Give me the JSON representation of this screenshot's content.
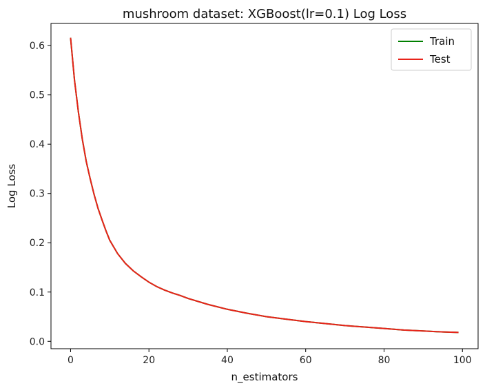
{
  "chart_data": {
    "type": "line",
    "title": "mushroom dataset: XGBoost(lr=0.1) Log Loss",
    "xlabel": "n_estimators",
    "ylabel": "Log Loss",
    "xlim": [
      -5,
      104
    ],
    "ylim": [
      -0.015,
      0.645
    ],
    "xticks": [
      0,
      20,
      40,
      60,
      80,
      100
    ],
    "yticks": [
      0.0,
      0.1,
      0.2,
      0.3,
      0.4,
      0.5,
      0.6
    ],
    "xtick_labels": [
      "0",
      "20",
      "40",
      "60",
      "80",
      "100"
    ],
    "ytick_labels": [
      "0.0",
      "0.1",
      "0.2",
      "0.3",
      "0.4",
      "0.5",
      "0.6"
    ],
    "grid": false,
    "legend_position": "top-right",
    "x": [
      0,
      1,
      2,
      3,
      4,
      5,
      6,
      7,
      8,
      9,
      10,
      12,
      14,
      16,
      18,
      20,
      22,
      24,
      26,
      28,
      30,
      35,
      40,
      45,
      50,
      55,
      60,
      65,
      70,
      75,
      80,
      85,
      90,
      95,
      99
    ],
    "series": [
      {
        "name": "Train",
        "color": "#008000",
        "values": [
          0.616,
          0.53,
          0.465,
          0.41,
          0.365,
          0.33,
          0.298,
          0.27,
          0.247,
          0.225,
          0.205,
          0.178,
          0.158,
          0.143,
          0.131,
          0.12,
          0.111,
          0.104,
          0.098,
          0.093,
          0.087,
          0.075,
          0.065,
          0.057,
          0.05,
          0.045,
          0.04,
          0.036,
          0.032,
          0.029,
          0.026,
          0.023,
          0.021,
          0.019,
          0.018
        ]
      },
      {
        "name": "Test",
        "color": "#e8231a",
        "values": [
          0.616,
          0.53,
          0.465,
          0.41,
          0.365,
          0.33,
          0.298,
          0.27,
          0.247,
          0.225,
          0.205,
          0.178,
          0.158,
          0.143,
          0.131,
          0.12,
          0.111,
          0.104,
          0.098,
          0.093,
          0.087,
          0.075,
          0.065,
          0.057,
          0.05,
          0.045,
          0.04,
          0.036,
          0.032,
          0.029,
          0.026,
          0.023,
          0.021,
          0.019,
          0.018
        ]
      }
    ]
  }
}
